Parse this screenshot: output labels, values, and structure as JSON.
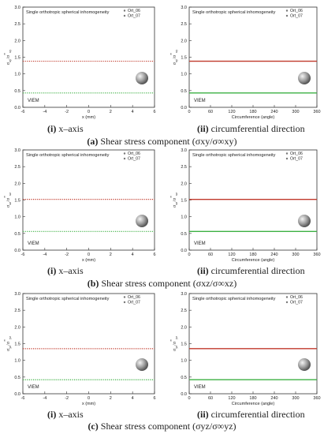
{
  "captions": {
    "a": {
      "letter": "(a)",
      "text": " Shear stress component (σxy/σ∞xy)"
    },
    "b": {
      "letter": "(b)",
      "text": " Shear stress component (σxz/σ∞xz)"
    },
    "c": {
      "letter": "(c)",
      "text": " Shear stress component (σyz/σ∞yz)"
    }
  },
  "sublabels": {
    "i": {
      "num": "(i)",
      "text": " x–axis"
    },
    "ii": {
      "num": "(ii)",
      "text": " circumferential direction"
    }
  },
  "chart_data": [
    {
      "id": "a-i",
      "type": "line",
      "chart_title": "Single orthotropic spherical inhomogeneity",
      "xlabel": "x (mm)",
      "ylabel": "σxy/σ∞xy",
      "xlim": [
        -6,
        6
      ],
      "ylim": [
        0,
        3.0
      ],
      "xticks": [
        -6,
        -4,
        -2,
        0,
        2,
        4,
        6
      ],
      "yticks": [
        0,
        0.5,
        1.0,
        1.5,
        2.0,
        2.5,
        3.0
      ],
      "ytick_labels": [
        "0.0",
        "0.5",
        "1.0",
        "1.5",
        "2.0",
        "2.5",
        "3.0"
      ],
      "legend": "top-right",
      "annotation": "VIEM",
      "series": [
        {
          "name": "Ort_06",
          "color": "#c0392b",
          "style": "dotted",
          "x": [
            -6,
            6
          ],
          "y": [
            1.38,
            1.38
          ]
        },
        {
          "name": "Ort_07",
          "color": "#3cb043",
          "style": "dotted",
          "x": [
            -6,
            6
          ],
          "y": [
            0.43,
            0.43
          ]
        }
      ]
    },
    {
      "id": "a-ii",
      "type": "line",
      "chart_title": "Single orthotropic spherical inhomogeneity",
      "xlabel": "Circumference (angle)",
      "ylabel": "σxy/σ∞xy",
      "xlim": [
        0,
        360
      ],
      "ylim": [
        0,
        3.0
      ],
      "xticks": [
        0,
        60,
        120,
        180,
        240,
        300,
        360
      ],
      "yticks": [
        0,
        0.5,
        1.0,
        1.5,
        2.0,
        2.5,
        3.0
      ],
      "ytick_labels": [
        "0.0",
        "0.5",
        "1.0",
        "1.5",
        "2.0",
        "2.5",
        "3.0"
      ],
      "legend": "top-right",
      "annotation": "VIEM",
      "series": [
        {
          "name": "Ort_06",
          "color": "#c0392b",
          "style": "solid",
          "x": [
            0,
            360
          ],
          "y": [
            1.38,
            1.38
          ]
        },
        {
          "name": "Ort_07",
          "color": "#3cb043",
          "style": "solid",
          "x": [
            0,
            360
          ],
          "y": [
            0.43,
            0.43
          ]
        }
      ]
    },
    {
      "id": "b-i",
      "type": "line",
      "chart_title": "Single orthotropic spherical inhomogeneity",
      "xlabel": "x (mm)",
      "ylabel": "σxz/σ∞xz",
      "xlim": [
        -6,
        6
      ],
      "ylim": [
        0,
        3.0
      ],
      "xticks": [
        -6,
        -4,
        -2,
        0,
        2,
        4,
        6
      ],
      "yticks": [
        0,
        0.5,
        1.0,
        1.5,
        2.0,
        2.5,
        3.0
      ],
      "ytick_labels": [
        "0.0",
        "0.5",
        "1.0",
        "1.5",
        "2.0",
        "2.5",
        "3.0"
      ],
      "legend": "top-right",
      "annotation": "VIEM",
      "series": [
        {
          "name": "Ort_06",
          "color": "#c0392b",
          "style": "dotted",
          "x": [
            -6,
            6
          ],
          "y": [
            1.52,
            1.52
          ]
        },
        {
          "name": "Ort_07",
          "color": "#3cb043",
          "style": "dotted",
          "x": [
            -6,
            6
          ],
          "y": [
            0.56,
            0.56
          ]
        }
      ]
    },
    {
      "id": "b-ii",
      "type": "line",
      "chart_title": "Single orthotropic spherical inhomogeneity",
      "xlabel": "Circumference (angle)",
      "ylabel": "σxz/σ∞xz",
      "xlim": [
        0,
        360
      ],
      "ylim": [
        0,
        3.0
      ],
      "xticks": [
        0,
        60,
        120,
        180,
        240,
        300,
        360
      ],
      "yticks": [
        0,
        0.5,
        1.0,
        1.5,
        2.0,
        2.5,
        3.0
      ],
      "ytick_labels": [
        "0.0",
        "0.5",
        "1.0",
        "1.5",
        "2.0",
        "2.5",
        "3.0"
      ],
      "legend": "top-right",
      "annotation": "VIEM",
      "series": [
        {
          "name": "Ort_06",
          "color": "#c0392b",
          "style": "solid",
          "x": [
            0,
            360
          ],
          "y": [
            1.52,
            1.52
          ]
        },
        {
          "name": "Ort_07",
          "color": "#3cb043",
          "style": "solid",
          "x": [
            0,
            360
          ],
          "y": [
            0.56,
            0.56
          ]
        }
      ]
    },
    {
      "id": "c-i",
      "type": "line",
      "chart_title": "Single orthotropic spherical inhomogeneity",
      "xlabel": "x (mm)",
      "ylabel": "σyz/σ∞yz",
      "xlim": [
        -6,
        6
      ],
      "ylim": [
        0,
        3.0
      ],
      "xticks": [
        -6,
        -4,
        -2,
        0,
        2,
        4,
        6
      ],
      "yticks": [
        0,
        0.5,
        1.0,
        1.5,
        2.0,
        2.5,
        3.0
      ],
      "ytick_labels": [
        "0.0",
        "0.5",
        "1.0",
        "1.5",
        "2.0",
        "2.5",
        "3.0"
      ],
      "legend": "top-right",
      "annotation": "VIEM",
      "series": [
        {
          "name": "Ort_06",
          "color": "#c0392b",
          "style": "dotted",
          "x": [
            -6,
            6
          ],
          "y": [
            1.35,
            1.35
          ]
        },
        {
          "name": "Ort_07",
          "color": "#3cb043",
          "style": "dotted",
          "x": [
            -6,
            6
          ],
          "y": [
            0.42,
            0.42
          ]
        }
      ]
    },
    {
      "id": "c-ii",
      "type": "line",
      "chart_title": "Single orthotropic spherical inhomogeneity",
      "xlabel": "Circumference (angle)",
      "ylabel": "σyz/σ∞yz",
      "xlim": [
        0,
        360
      ],
      "ylim": [
        0,
        3.0
      ],
      "xticks": [
        0,
        60,
        120,
        180,
        240,
        300,
        360
      ],
      "yticks": [
        0,
        0.5,
        1.0,
        1.5,
        2.0,
        2.5,
        3.0
      ],
      "ytick_labels": [
        "0.0",
        "0.5",
        "1.0",
        "1.5",
        "2.0",
        "2.5",
        "3.0"
      ],
      "legend": "top-right",
      "annotation": "VIEM",
      "series": [
        {
          "name": "Ort_06",
          "color": "#c0392b",
          "style": "solid",
          "x": [
            0,
            360
          ],
          "y": [
            1.35,
            1.35
          ]
        },
        {
          "name": "Ort_07",
          "color": "#3cb043",
          "style": "solid",
          "x": [
            0,
            360
          ],
          "y": [
            0.42,
            0.42
          ]
        }
      ]
    }
  ]
}
